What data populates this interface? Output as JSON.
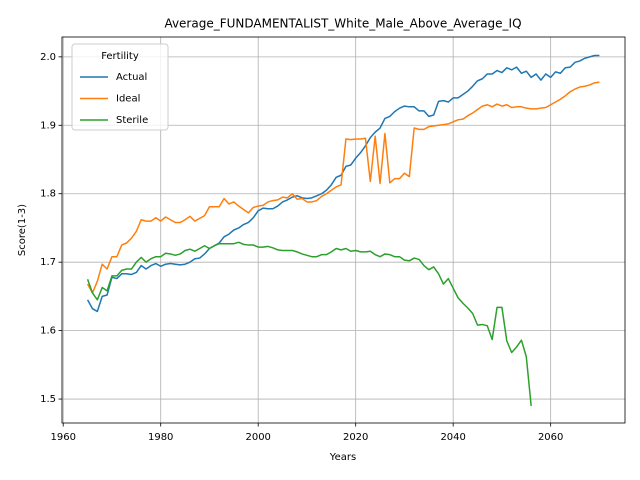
{
  "chart_data": {
    "type": "line",
    "title": "Average_FUNDAMENTALIST_White_Male_Above_Average_IQ",
    "x_label": "Years",
    "y_label": "Score(1-3)",
    "legend_title": "Fertility",
    "legend": "upper left",
    "grid": true,
    "xlim": [
      1959.75,
      2075.25
    ],
    "xticks": [
      1960,
      1980,
      2000,
      2020,
      2040,
      2060
    ],
    "ylim": [
      1.465,
      2.029
    ],
    "yticks": [
      1.5,
      1.6,
      1.7,
      1.8,
      1.9,
      {
        "value": 2,
        "label": "2.0"
      }
    ],
    "x": [
      1965,
      1966,
      1967,
      1968,
      1969,
      1970,
      1971,
      1972,
      1973,
      1974,
      1975,
      1976,
      1977,
      1978,
      1979,
      1980,
      1981,
      1982,
      1983,
      1984,
      1985,
      1986,
      1987,
      1988,
      1989,
      1990,
      1991,
      1992,
      1993,
      1994,
      1995,
      1996,
      1997,
      1998,
      1999,
      2000,
      2001,
      2002,
      2003,
      2004,
      2005,
      2006,
      2007,
      2008,
      2009,
      2010,
      2011,
      2012,
      2013,
      2014,
      2015,
      2016,
      2017,
      2018,
      2019,
      2020,
      2021,
      2022,
      2023,
      2024,
      2025,
      2026,
      2027,
      2028,
      2029,
      2030,
      2031,
      2032,
      2033,
      2034,
      2035,
      2036,
      2037,
      2038,
      2039,
      2040,
      2041,
      2042,
      2043,
      2044,
      2045,
      2046,
      2047,
      2048,
      2049,
      2050,
      2051,
      2052,
      2053,
      2054,
      2055,
      2056,
      2057,
      2058,
      2059,
      2060,
      2061,
      2062,
      2063,
      2064,
      2065,
      2066,
      2067,
      2068,
      2069,
      2070
    ],
    "series": [
      {
        "name": "Actual",
        "color": "#1f77b4",
        "values": [
          1.645,
          1.632,
          1.628,
          1.65,
          1.652,
          1.678,
          1.676,
          1.683,
          1.683,
          1.682,
          1.685,
          1.695,
          1.69,
          1.695,
          1.698,
          1.694,
          1.697,
          1.698,
          1.697,
          1.696,
          1.697,
          1.7,
          1.705,
          1.706,
          1.712,
          1.72,
          1.724,
          1.728,
          1.737,
          1.741,
          1.747,
          1.75,
          1.755,
          1.758,
          1.765,
          1.775,
          1.779,
          1.778,
          1.778,
          1.782,
          1.788,
          1.791,
          1.795,
          1.797,
          1.794,
          1.793,
          1.794,
          1.797,
          1.8,
          1.805,
          1.813,
          1.824,
          1.827,
          1.84,
          1.842,
          1.852,
          1.86,
          1.87,
          1.882,
          1.89,
          1.896,
          1.91,
          1.913,
          1.92,
          1.925,
          1.928,
          1.927,
          1.927,
          1.921,
          1.921,
          1.913,
          1.915,
          1.935,
          1.936,
          1.934,
          1.94,
          1.94,
          1.945,
          1.95,
          1.957,
          1.965,
          1.968,
          1.975,
          1.975,
          1.98,
          1.977,
          1.984,
          1.981,
          1.985,
          1.976,
          1.979,
          1.97,
          1.975,
          1.966,
          1.975,
          1.97,
          1.978,
          1.976,
          1.984,
          1.985,
          1.992,
          1.994,
          1.998,
          2.0,
          2.002,
          2.002
        ]
      },
      {
        "name": "Ideal",
        "color": "#ff7f0e",
        "values": [
          1.668,
          1.655,
          1.672,
          1.697,
          1.69,
          1.708,
          1.708,
          1.725,
          1.728,
          1.735,
          1.745,
          1.762,
          1.76,
          1.76,
          1.765,
          1.76,
          1.766,
          1.762,
          1.758,
          1.758,
          1.762,
          1.767,
          1.76,
          1.764,
          1.768,
          1.781,
          1.781,
          1.781,
          1.793,
          1.785,
          1.788,
          1.782,
          1.777,
          1.772,
          1.78,
          1.782,
          1.783,
          1.788,
          1.79,
          1.791,
          1.795,
          1.794,
          1.8,
          1.792,
          1.793,
          1.788,
          1.788,
          1.79,
          1.796,
          1.8,
          1.805,
          1.81,
          1.813,
          1.88,
          1.879,
          1.88,
          1.88,
          1.881,
          1.818,
          1.884,
          1.815,
          1.888,
          1.816,
          1.822,
          1.822,
          1.83,
          1.825,
          1.896,
          1.894,
          1.894,
          1.898,
          1.899,
          1.9,
          1.901,
          1.902,
          1.905,
          1.908,
          1.909,
          1.914,
          1.918,
          1.923,
          1.928,
          1.93,
          1.927,
          1.931,
          1.928,
          1.93,
          1.926,
          1.927,
          1.927,
          1.925,
          1.924,
          1.924,
          1.925,
          1.926,
          1.93,
          1.934,
          1.938,
          1.943,
          1.949,
          1.953,
          1.956,
          1.957,
          1.959,
          1.962,
          1.963
        ]
      },
      {
        "name": "Sterile",
        "color": "#2ca02c",
        "values": [
          1.675,
          1.655,
          1.645,
          1.663,
          1.658,
          1.68,
          1.68,
          1.688,
          1.69,
          1.69,
          1.7,
          1.707,
          1.7,
          1.705,
          1.708,
          1.708,
          1.713,
          1.712,
          1.71,
          1.712,
          1.717,
          1.719,
          1.716,
          1.72,
          1.724,
          1.72,
          1.724,
          1.727,
          1.727,
          1.727,
          1.727,
          1.729,
          1.726,
          1.725,
          1.725,
          1.722,
          1.722,
          1.723,
          1.721,
          1.718,
          1.717,
          1.717,
          1.717,
          1.715,
          1.712,
          1.71,
          1.708,
          1.708,
          1.711,
          1.711,
          1.715,
          1.72,
          1.718,
          1.72,
          1.716,
          1.717,
          1.715,
          1.715,
          1.716,
          1.711,
          1.708,
          1.712,
          1.711,
          1.708,
          1.708,
          1.703,
          1.702,
          1.706,
          1.704,
          1.695,
          1.689,
          1.693,
          1.683,
          1.668,
          1.676,
          1.662,
          1.648,
          1.64,
          1.633,
          1.625,
          1.608,
          1.609,
          1.607,
          1.587,
          1.634,
          1.634,
          1.585,
          1.568,
          1.576,
          1.586,
          1.562,
          1.49,
          null,
          null,
          null,
          null,
          null,
          null,
          null,
          null,
          null,
          null,
          null,
          null,
          null,
          null
        ]
      }
    ]
  }
}
